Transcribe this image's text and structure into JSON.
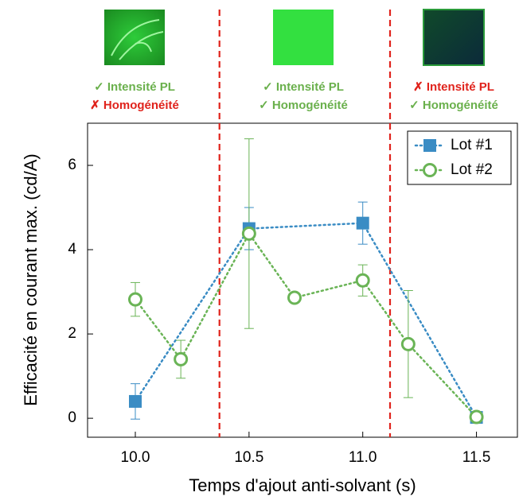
{
  "chart_data": {
    "type": "line",
    "xlabel": "Temps d'ajout anti-solvant (s)",
    "ylabel": "Efficacité en courant max. (cd/A)",
    "xlim": [
      9.79,
      11.68
    ],
    "ylim": [
      -0.45,
      7.0
    ],
    "xticks": [
      {
        "value": 10,
        "label": "10.0"
      },
      10.5,
      {
        "value": 11,
        "label": "11.0"
      },
      11.5
    ],
    "yticks": [
      0,
      2,
      4,
      6
    ],
    "grid": false,
    "legend": "upper right",
    "vlines": [
      10.37,
      11.12
    ],
    "vline_color": "#e0231c",
    "series": [
      {
        "name": "Lot #1",
        "color": "#3a8cc4",
        "marker": "square",
        "x": [
          10.0,
          10.5,
          11.0,
          11.5
        ],
        "values": [
          0.4,
          4.5,
          4.63,
          0.02
        ],
        "errors": [
          0.42,
          0.5,
          0.5,
          null
        ]
      },
      {
        "name": "Lot #2",
        "color": "#6ab456",
        "marker": "circle",
        "x": [
          10.0,
          10.2,
          10.5,
          10.7,
          11.0,
          11.2,
          11.5
        ],
        "values": [
          2.82,
          1.4,
          4.38,
          2.86,
          3.27,
          1.76,
          0.03
        ],
        "errors": [
          0.4,
          0.45,
          2.25,
          null,
          0.37,
          1.27,
          null
        ]
      }
    ],
    "panels": [
      {
        "lines": [
          {
            "text": "✓ Intensité PL",
            "color": "#6ab04c"
          },
          {
            "text": "✗ Homogénéité",
            "color": "#e0231c"
          }
        ]
      },
      {
        "lines": [
          {
            "text": "✓ Intensité PL",
            "color": "#6ab04c"
          },
          {
            "text": "✓ Homogénéité",
            "color": "#6ab04c"
          }
        ]
      },
      {
        "lines": [
          {
            "text": "✗ Intensité PL",
            "color": "#e0231c"
          },
          {
            "text": "✓ Homogénéité",
            "color": "#6ab04c"
          }
        ]
      }
    ]
  }
}
